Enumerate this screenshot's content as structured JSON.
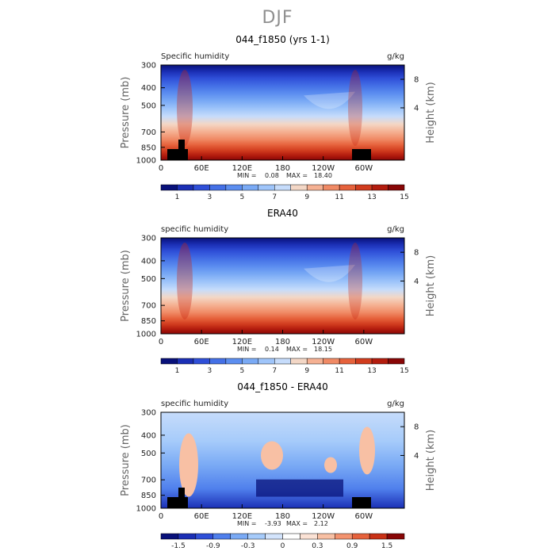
{
  "figure": {
    "title": "DJF"
  },
  "chart_data": [
    {
      "type": "heatmap",
      "title": "044_f1850 (yrs 1-1)",
      "left_label": "Specific humidity",
      "right_label": "g/kg",
      "ylabel": "Pressure (mb)",
      "ylabel_right": "Height (km)",
      "xticks": [
        "0",
        "60E",
        "120E",
        "180",
        "120W",
        "60W"
      ],
      "yticks": [
        "300",
        "400",
        "500",
        "700",
        "850",
        "1000"
      ],
      "yticks_right": [
        "8",
        "4"
      ],
      "min_text": "MIN =",
      "min_value": "0.08",
      "max_text": "MAX =",
      "max_value": "18.40",
      "colorbar_ticks": [
        "1",
        "3",
        "5",
        "7",
        "9",
        "11",
        "13",
        "15"
      ],
      "palette": "humidity",
      "ylim": [
        1000,
        300
      ],
      "xlim": [
        0,
        360
      ],
      "min": 0.08,
      "max": 18.4
    },
    {
      "type": "heatmap",
      "title": "ERA40",
      "left_label": "specific humidity",
      "right_label": "g/kg",
      "ylabel": "Pressure (mb)",
      "ylabel_right": "Height (km)",
      "xticks": [
        "0",
        "60E",
        "120E",
        "180",
        "120W",
        "60W"
      ],
      "yticks": [
        "300",
        "400",
        "500",
        "700",
        "850",
        "1000"
      ],
      "yticks_right": [
        "8",
        "4"
      ],
      "min_text": "MIN =",
      "min_value": "0.14",
      "max_text": "MAX =",
      "max_value": "18.15",
      "colorbar_ticks": [
        "1",
        "3",
        "5",
        "7",
        "9",
        "11",
        "13",
        "15"
      ],
      "palette": "humidity",
      "ylim": [
        1000,
        300
      ],
      "xlim": [
        0,
        360
      ],
      "min": 0.14,
      "max": 18.15
    },
    {
      "type": "heatmap",
      "title": "044_f1850 - ERA40",
      "left_label": "specific humidity",
      "right_label": "g/kg",
      "ylabel": "Pressure (mb)",
      "ylabel_right": "Height (km)",
      "xticks": [
        "0",
        "60E",
        "120E",
        "180",
        "120W",
        "60W"
      ],
      "yticks": [
        "300",
        "400",
        "500",
        "700",
        "850",
        "1000"
      ],
      "yticks_right": [
        "8",
        "4"
      ],
      "min_text": "MIN =",
      "min_value": "-3.93",
      "max_text": "MAX =",
      "max_value": "2.12",
      "colorbar_ticks": [
        "-1.5",
        "-0.9",
        "-0.3",
        "0",
        "0.3",
        "0.9",
        "1.5"
      ],
      "palette": "difference",
      "ylim": [
        1000,
        300
      ],
      "xlim": [
        0,
        360
      ],
      "min": -3.93,
      "max": 2.12
    }
  ],
  "colors": {
    "humidity_scale": [
      "#08117a",
      "#1b2fb5",
      "#2f4fd8",
      "#4470e6",
      "#5c8ef0",
      "#7aaaf5",
      "#9fc5fa",
      "#c6dcfb",
      "#f3d7c6",
      "#f5b193",
      "#f08a65",
      "#e6623c",
      "#d13c1e",
      "#b31c0e",
      "#880606"
    ],
    "difference_scale": [
      "#08117a",
      "#1b2fb5",
      "#2f4fd8",
      "#4f7fec",
      "#7aaaf5",
      "#a6cbfa",
      "#d3e4fc",
      "#ffffff",
      "#fbe2d5",
      "#f8c0a4",
      "#f3936f",
      "#e6623c",
      "#c93116",
      "#880606"
    ],
    "topography": "#000000"
  }
}
